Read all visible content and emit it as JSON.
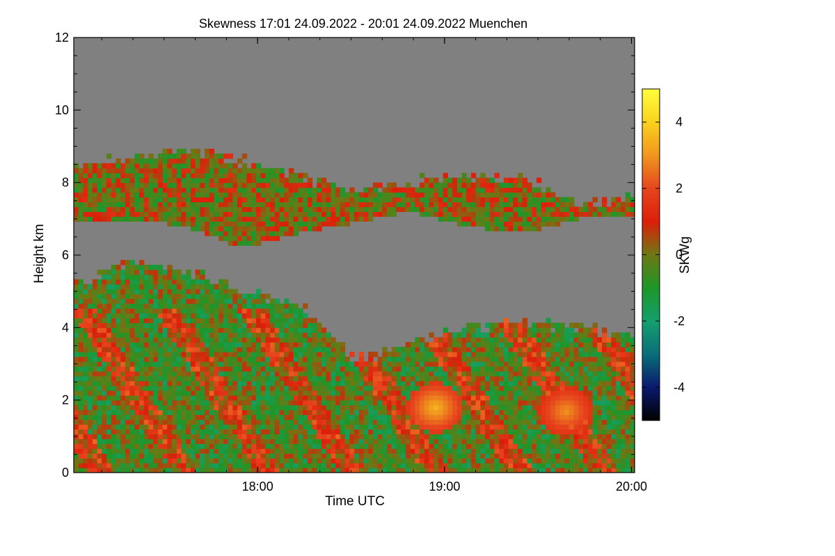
{
  "chart_data": {
    "type": "heatmap",
    "title": "Skewness   17:01 24.09.2022 - 20:01 24.09.2022 Muenchen",
    "xlabel": "Time UTC",
    "ylabel": "Height km",
    "x_range_utc_hours": [
      17.0167,
      20.0167
    ],
    "ylim": [
      0,
      12
    ],
    "x_ticks": [
      {
        "value": 18,
        "label": "18:00"
      },
      {
        "value": 19,
        "label": "19:00"
      },
      {
        "value": 20,
        "label": "20:00"
      }
    ],
    "y_ticks": [
      {
        "value": 0,
        "label": "0"
      },
      {
        "value": 2,
        "label": "2"
      },
      {
        "value": 4,
        "label": "4"
      },
      {
        "value": 6,
        "label": "6"
      },
      {
        "value": 8,
        "label": "8"
      },
      {
        "value": 10,
        "label": "10"
      },
      {
        "value": 12,
        "label": "12"
      }
    ],
    "colorbar": {
      "label": "SKWg",
      "range": [
        -5,
        5
      ],
      "ticks": [
        {
          "value": 4,
          "label": "4"
        },
        {
          "value": 2,
          "label": "2"
        },
        {
          "value": 0,
          "label": "0"
        },
        {
          "value": -2,
          "label": "-2"
        },
        {
          "value": -4,
          "label": "-4"
        }
      ],
      "stops": [
        {
          "value": -5,
          "color": "#000000"
        },
        {
          "value": -4,
          "color": "#0a1a6e"
        },
        {
          "value": -3,
          "color": "#0a6e78"
        },
        {
          "value": -2,
          "color": "#14a06e"
        },
        {
          "value": -1,
          "color": "#1e9628"
        },
        {
          "value": 0,
          "color": "#6e7814"
        },
        {
          "value": 1,
          "color": "#dc1e0a"
        },
        {
          "value": 2,
          "color": "#e6461e"
        },
        {
          "value": 3,
          "color": "#f0961e"
        },
        {
          "value": 4,
          "color": "#fad21e"
        },
        {
          "value": 5,
          "color": "#ffff3c"
        }
      ]
    },
    "no_data_color": "#808080",
    "regions": [
      {
        "name": "upper-cloud-layer",
        "t_start": 17.02,
        "t_end": 20.02,
        "base_km": [
          6.9,
          7.0,
          6.8,
          6.2,
          6.6,
          6.9,
          7.2,
          6.8,
          6.6,
          7.0,
          7.1
        ],
        "top_km": [
          8.4,
          8.7,
          8.9,
          8.6,
          8.2,
          7.8,
          8.0,
          8.2,
          8.1,
          7.4,
          7.6
        ],
        "typical_skw": 0.1
      },
      {
        "name": "lower-layer-and-boundary-layer",
        "t_start": 17.02,
        "t_end": 20.02,
        "base_km": [
          0,
          0,
          0,
          0,
          0,
          0,
          0,
          0,
          0,
          0,
          0
        ],
        "top_km": [
          5.2,
          5.8,
          5.6,
          5.0,
          4.7,
          3.1,
          3.6,
          4.0,
          4.2,
          4.0,
          3.8
        ],
        "typical_skw": -0.5
      },
      {
        "name": "high-skewness-patch-18:00-19:00",
        "time_utc": 18.95,
        "height_km": 1.8,
        "peak_skw": 3.5
      },
      {
        "name": "high-skewness-patch-19:40",
        "time_utc": 19.65,
        "height_km": 1.7,
        "peak_skw": 3.0
      }
    ]
  }
}
